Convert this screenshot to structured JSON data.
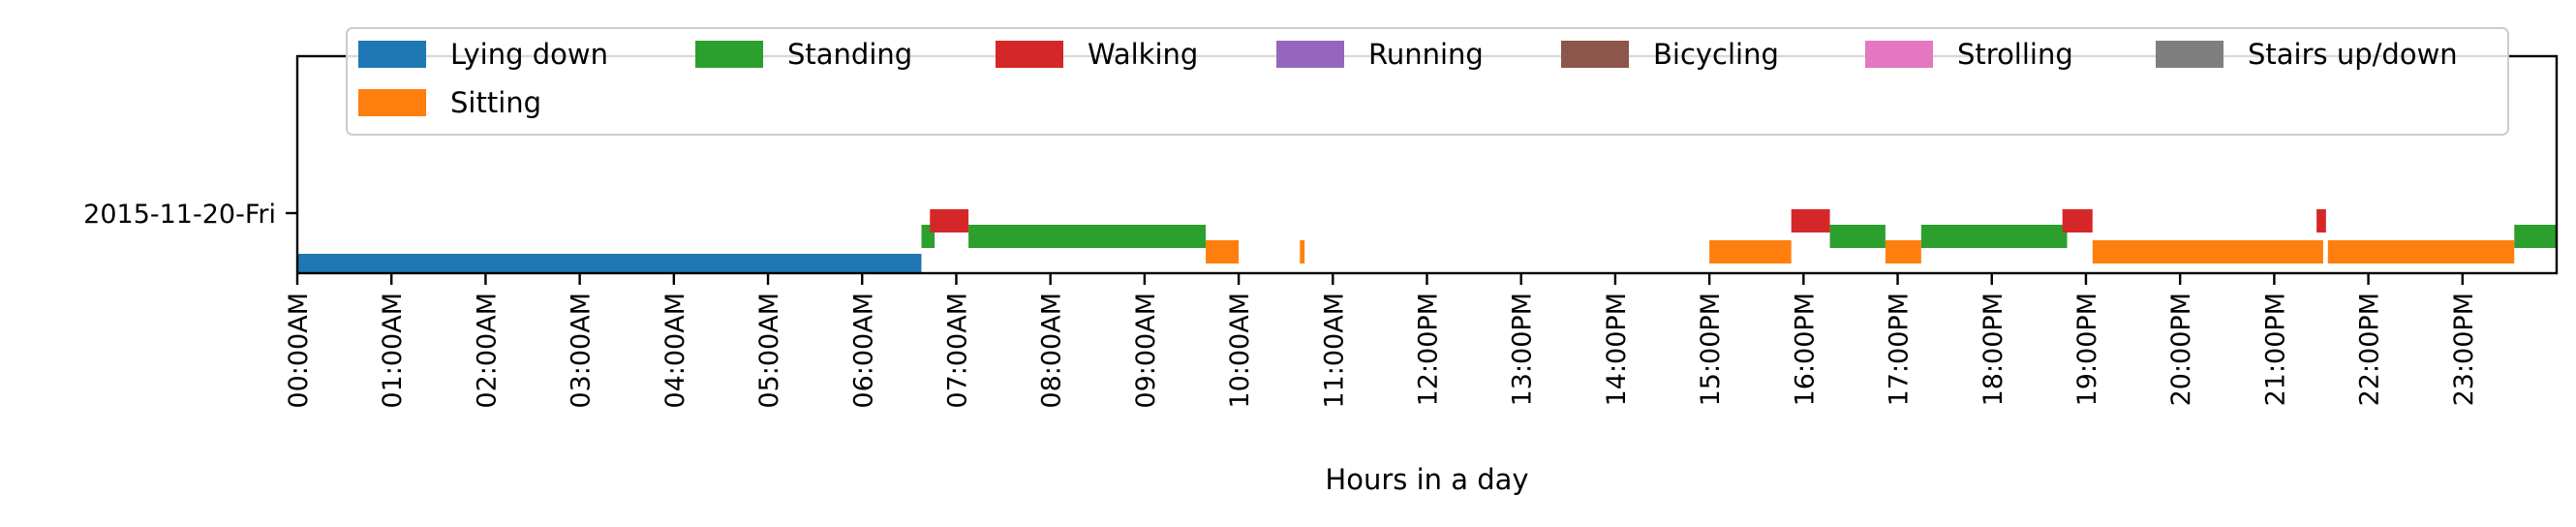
{
  "chart_data": {
    "type": "timeline",
    "xlabel": "Hours in a day",
    "xlim": [
      0,
      24
    ],
    "day_label": "2015-11-20-Fri",
    "x_tick_labels": [
      "00:00AM",
      "01:00AM",
      "02:00AM",
      "03:00AM",
      "04:00AM",
      "05:00AM",
      "06:00AM",
      "07:00AM",
      "08:00AM",
      "09:00AM",
      "10:00AM",
      "11:00AM",
      "12:00PM",
      "13:00PM",
      "14:00PM",
      "15:00PM",
      "16:00PM",
      "17:00PM",
      "18:00PM",
      "19:00PM",
      "20:00PM",
      "21:00PM",
      "22:00PM",
      "23:00PM"
    ],
    "legend": {
      "placement": "top",
      "entries": [
        {
          "label": "Lying down",
          "color": "#1f77b4"
        },
        {
          "label": "Standing",
          "color": "#2ca02c"
        },
        {
          "label": "Walking",
          "color": "#d62728"
        },
        {
          "label": "Running",
          "color": "#9467bd"
        },
        {
          "label": "Bicycling",
          "color": "#8c564b"
        },
        {
          "label": "Strolling",
          "color": "#e377c2"
        },
        {
          "label": "Stairs up/down",
          "color": "#7f7f7f"
        },
        {
          "label": "Sitting",
          "color": "#ff7f0e"
        }
      ]
    },
    "series": [
      {
        "name": "Lying down",
        "color": "#1f77b4",
        "intervals": [
          [
            0.0,
            6.63
          ]
        ]
      },
      {
        "name": "Sitting",
        "color": "#ff7f0e",
        "intervals": [
          [
            9.65,
            10.0
          ],
          [
            10.65,
            10.7
          ],
          [
            15.0,
            15.87
          ],
          [
            16.87,
            17.25
          ],
          [
            19.07,
            21.52
          ],
          [
            21.57,
            23.55
          ]
        ]
      },
      {
        "name": "Standing",
        "color": "#2ca02c",
        "intervals": [
          [
            6.63,
            6.77
          ],
          [
            7.13,
            9.65
          ],
          [
            16.28,
            16.87
          ],
          [
            17.25,
            18.8
          ],
          [
            23.55,
            24.0
          ]
        ]
      },
      {
        "name": "Walking",
        "color": "#d62728",
        "intervals": [
          [
            6.72,
            7.13
          ],
          [
            15.87,
            16.28
          ],
          [
            18.75,
            19.07
          ],
          [
            21.45,
            21.55
          ]
        ]
      },
      {
        "name": "Running",
        "color": "#9467bd",
        "intervals": []
      },
      {
        "name": "Bicycling",
        "color": "#8c564b",
        "intervals": []
      },
      {
        "name": "Strolling",
        "color": "#e377c2",
        "intervals": []
      },
      {
        "name": "Stairs up/down",
        "color": "#7f7f7f",
        "intervals": []
      }
    ]
  }
}
